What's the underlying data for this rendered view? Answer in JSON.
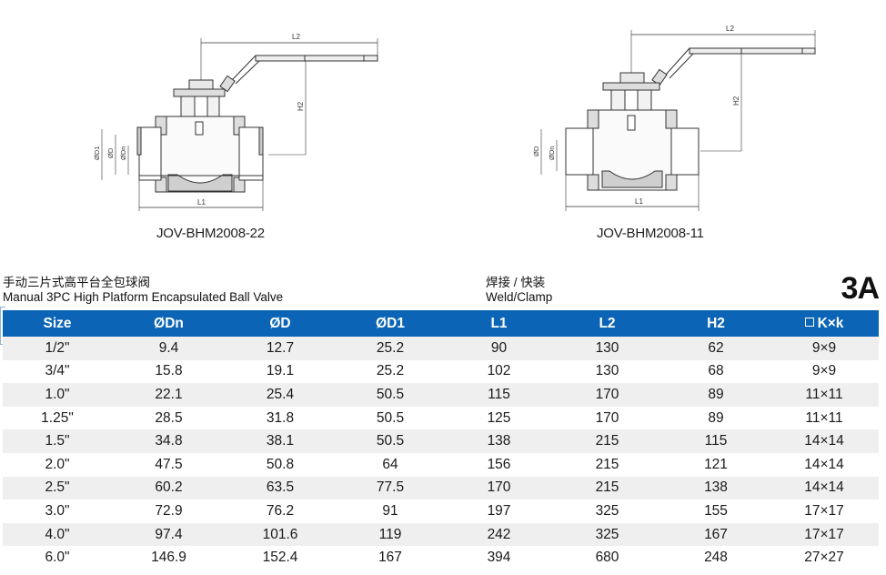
{
  "drawings": [
    {
      "model": "JOV-BHM2008-22",
      "end_type": "clamp",
      "dimension_labels": [
        "L2",
        "H2",
        "ØD1",
        "ØD",
        "ØDn",
        "L1"
      ]
    },
    {
      "model": "JOV-BHM2008-11",
      "end_type": "weld",
      "dimension_labels": [
        "L2",
        "H2",
        "ØD",
        "ØDn",
        "L1"
      ]
    }
  ],
  "title": {
    "zh": "手动三片式高平台全包球阀",
    "en": "Manual 3PC High Platform Encapsulated Ball Valve"
  },
  "connection": {
    "zh": "焊接 / 快装",
    "en": "Weld/Clamp"
  },
  "grade": "3A",
  "table": {
    "header_color": "#0b64b5",
    "stripe_color": "#efefef",
    "headers": [
      "Size",
      "ØDn",
      "ØD",
      "ØD1",
      "L1",
      "L2",
      "H2",
      "K×k"
    ],
    "square_icon": "square-icon",
    "rows": [
      [
        "1/2\"",
        "9.4",
        "12.7",
        "25.2",
        "90",
        "130",
        "62",
        "9×9"
      ],
      [
        "3/4\"",
        "15.8",
        "19.1",
        "25.2",
        "102",
        "130",
        "68",
        "9×9"
      ],
      [
        "1.0\"",
        "22.1",
        "25.4",
        "50.5",
        "115",
        "170",
        "89",
        "11×11"
      ],
      [
        "1.25\"",
        "28.5",
        "31.8",
        "50.5",
        "125",
        "170",
        "89",
        "11×11"
      ],
      [
        "1.5\"",
        "34.8",
        "38.1",
        "50.5",
        "138",
        "215",
        "115",
        "14×14"
      ],
      [
        "2.0\"",
        "47.5",
        "50.8",
        "64",
        "156",
        "215",
        "121",
        "14×14"
      ],
      [
        "2.5\"",
        "60.2",
        "63.5",
        "77.5",
        "170",
        "215",
        "138",
        "14×14"
      ],
      [
        "3.0\"",
        "72.9",
        "76.2",
        "91",
        "197",
        "325",
        "155",
        "17×17"
      ],
      [
        "4.0\"",
        "97.4",
        "101.6",
        "119",
        "242",
        "325",
        "167",
        "17×17"
      ],
      [
        "6.0\"",
        "146.9",
        "152.4",
        "167",
        "394",
        "680",
        "248",
        "27×27"
      ]
    ]
  }
}
